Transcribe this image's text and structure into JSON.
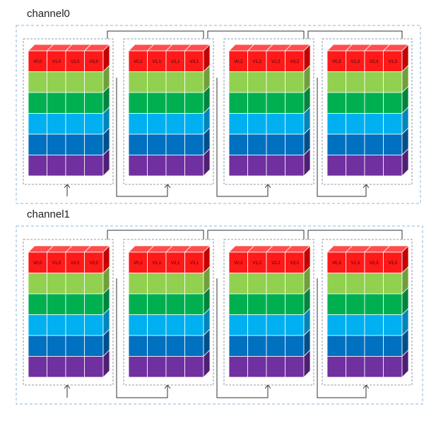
{
  "colors": {
    "outer_border": "#8fb4d9",
    "group_border": "#6b7f96",
    "connector": "#333333",
    "cell_border": "#ffffff",
    "layers": [
      {
        "front": "#ff1a1a",
        "top": "#ff4d4d",
        "side": "#c40000"
      },
      {
        "front": "#92d050",
        "top": "#a8dc70",
        "side": "#6f9f3a"
      },
      {
        "front": "#00b050",
        "top": "#2fc670",
        "side": "#00853c"
      },
      {
        "front": "#00b0f0",
        "top": "#33c2f4",
        "side": "#0086b8"
      },
      {
        "front": "#0070c0",
        "top": "#3390d0",
        "side": "#004f8a"
      },
      {
        "front": "#7030a0",
        "top": "#8a50b6",
        "side": "#4f1f73"
      }
    ]
  },
  "channels": [
    {
      "title": "channel0",
      "groups": [
        {
          "labels": [
            "V0,0",
            "V1,0",
            "V2,0",
            "V3,0"
          ]
        },
        {
          "labels": [
            "V0,1",
            "V1,1",
            "V2,1",
            "V3,1"
          ]
        },
        {
          "labels": [
            "V0,2",
            "V1,2",
            "V2,2",
            "V3,2"
          ]
        },
        {
          "labels": [
            "V0,3",
            "V1,3",
            "V2,3",
            "V3,3"
          ]
        }
      ]
    },
    {
      "title": "channel1",
      "groups": [
        {
          "labels": [
            "V0,0",
            "V1,0",
            "V2,0",
            "V3,0"
          ]
        },
        {
          "labels": [
            "V0,1",
            "V1,1",
            "V2,1",
            "V3,1"
          ]
        },
        {
          "labels": [
            "V0,2",
            "V1,2",
            "V2,2",
            "V3,2"
          ]
        },
        {
          "labels": [
            "V0,3",
            "V1,3",
            "V2,3",
            "V3,3"
          ]
        }
      ]
    }
  ]
}
